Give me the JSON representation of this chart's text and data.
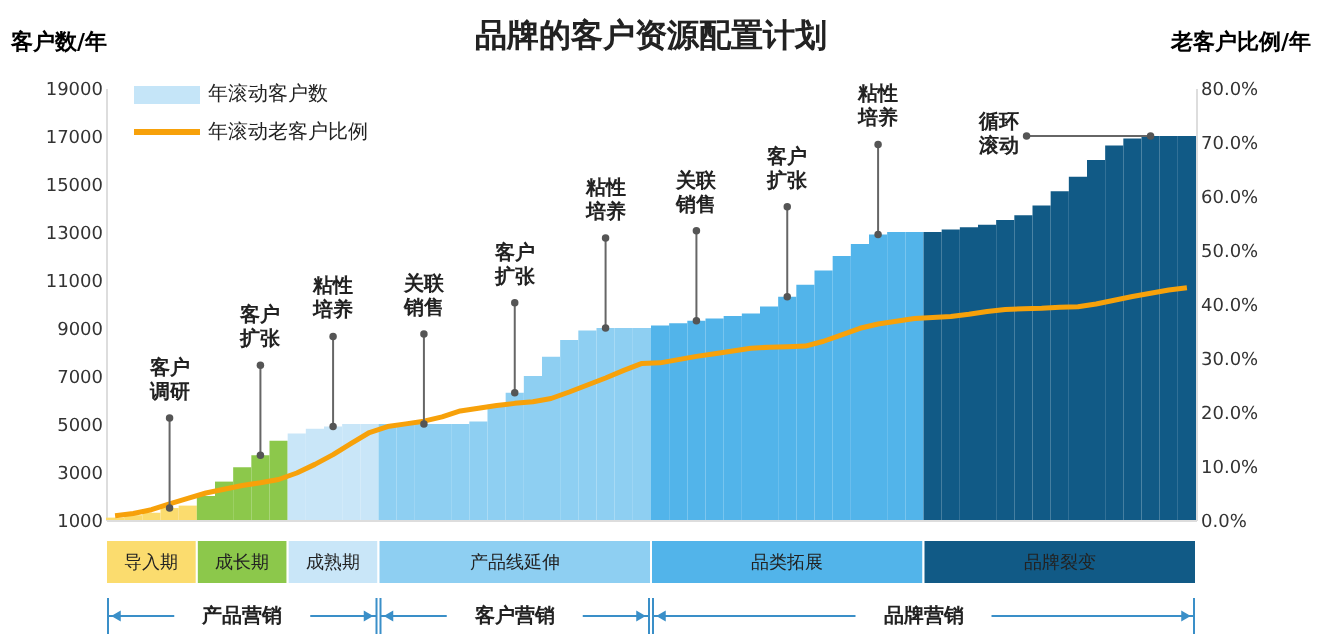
{
  "chart_data": {
    "type": "bar",
    "title": "品牌的客户资源配置计划",
    "ylabel": "客户数/年",
    "y2label": "老客户比例/年",
    "categories": [
      null,
      null,
      null,
      null,
      null,
      null,
      null,
      null,
      null,
      null,
      null,
      null,
      null,
      null,
      null,
      null,
      null,
      null,
      null,
      null,
      null,
      null,
      null,
      null,
      null,
      null,
      null,
      null,
      null,
      null,
      null,
      null,
      null,
      null,
      null,
      null,
      null,
      null,
      null,
      null,
      null,
      null,
      null,
      null,
      null,
      null,
      null,
      null,
      null,
      null,
      null,
      null,
      null,
      null,
      null,
      null,
      null,
      null,
      null,
      null
    ],
    "series": [
      {
        "name": "年滚动客户数",
        "color": "#c5e5f8",
        "colors": [
          "#fbdc6e",
          "#fbdc6e",
          "#fbdc6e",
          "#fbdc6e",
          "#fbdc6e",
          "#8cc84b",
          "#8cc84b",
          "#8cc84b",
          "#8cc84b",
          "#8cc84b",
          "#c9e6f8",
          "#c9e6f8",
          "#c9e6f8",
          "#c9e6f8",
          "#c9e6f8",
          "#8ecff2",
          "#8ecff2",
          "#8ecff2",
          "#8ecff2",
          "#8ecff2",
          "#8ecff2",
          "#8ecff2",
          "#8ecff2",
          "#8ecff2",
          "#8ecff2",
          "#8ecff2",
          "#8ecff2",
          "#8ecff2",
          "#8ecff2",
          "#8ecff2",
          "#52b4ea",
          "#52b4ea",
          "#52b4ea",
          "#52b4ea",
          "#52b4ea",
          "#52b4ea",
          "#52b4ea",
          "#52b4ea",
          "#52b4ea",
          "#52b4ea",
          "#52b4ea",
          "#52b4ea",
          "#52b4ea",
          "#52b4ea",
          "#52b4ea",
          "#115a86",
          "#115a86",
          "#115a86",
          "#115a86",
          "#115a86",
          "#115a86",
          "#115a86",
          "#115a86",
          "#115a86",
          "#115a86",
          "#115a86",
          "#115a86",
          "#115a86",
          "#115a86",
          "#115a86"
        ],
        "values": [
          1100,
          1200,
          1300,
          1500,
          1600,
          2000,
          2600,
          3200,
          3700,
          4300,
          4600,
          4800,
          4900,
          5000,
          5000,
          5000,
          5000,
          5000,
          5000,
          5000,
          5100,
          5800,
          6300,
          7000,
          7800,
          8500,
          8900,
          9000,
          9000,
          9000,
          9100,
          9200,
          9300,
          9400,
          9500,
          9600,
          9900,
          10300,
          10800,
          11400,
          12000,
          12500,
          12900,
          13000,
          13000,
          13000,
          13100,
          13200,
          13300,
          13500,
          13700,
          14100,
          14700,
          15300,
          16000,
          16600,
          16900,
          17000,
          17000,
          17000
        ]
      },
      {
        "name": "年滚动老客户比例",
        "type": "line",
        "axis": "y2",
        "color": "#f7a10a",
        "values": [
          0.8,
          1.2,
          1.9,
          3.0,
          4.0,
          5.0,
          5.7,
          6.4,
          6.9,
          7.5,
          8.7,
          10.3,
          12.1,
          14.2,
          16.2,
          17.3,
          17.8,
          18.3,
          19.1,
          20.2,
          20.7,
          21.2,
          21.6,
          21.9,
          22.5,
          23.7,
          25.0,
          26.3,
          27.7,
          29.0,
          29.1,
          29.7,
          30.3,
          30.8,
          31.3,
          31.8,
          32.0,
          32.1,
          32.2,
          33.1,
          34.3,
          35.5,
          36.3,
          36.8,
          37.3,
          37.5,
          37.7,
          38.1,
          38.6,
          39.0,
          39.1,
          39.2,
          39.4,
          39.5,
          40.0,
          40.7,
          41.4,
          42.0,
          42.6,
          43.0
        ]
      }
    ],
    "ylim": [
      1000,
      19000
    ],
    "yticks": [
      1000,
      3000,
      5000,
      7000,
      9000,
      11000,
      13000,
      15000,
      17000,
      19000
    ],
    "y2lim": [
      0,
      80
    ],
    "y2ticks": [
      {
        "value": 0,
        "label": "0.0%"
      },
      {
        "value": 10,
        "label": "10.0%"
      },
      {
        "value": 20,
        "label": "20.0%"
      },
      {
        "value": 30,
        "label": "30.0%"
      },
      {
        "value": 40,
        "label": "40.0%"
      },
      {
        "value": 50,
        "label": "50.0%"
      },
      {
        "value": 60,
        "label": "60.0%"
      },
      {
        "value": 70,
        "label": "70.0%"
      },
      {
        "value": 80,
        "label": "80.0%"
      }
    ],
    "legend": "top left",
    "grid": false,
    "annotations": [
      "客户调研",
      "客户扩张",
      "粘性培养",
      "关联销售",
      "客户扩张",
      "粘性培养",
      "关联销售",
      "客户扩张",
      "粘性培养",
      "循环滚动",
      "导入期",
      "成长期",
      "成熟期",
      "产品线延伸",
      "品类拓展",
      "品牌裂变",
      "产品营销",
      "客户营销",
      "品牌营销"
    ]
  }
}
